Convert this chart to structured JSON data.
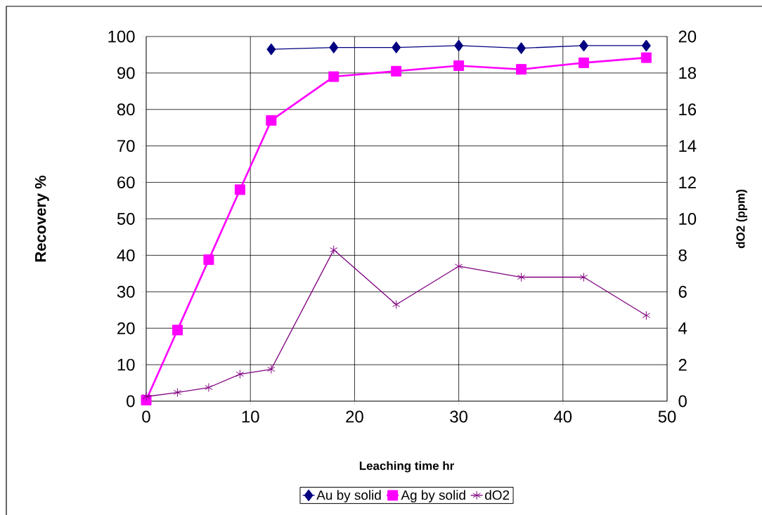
{
  "chart_data": {
    "type": "line",
    "xlabel": "Leaching time hr",
    "ylabel": "Recovery %",
    "y2label": "dO2 (ppm)",
    "xlim": [
      0,
      50
    ],
    "xticks": [
      0,
      10,
      20,
      30,
      40,
      50
    ],
    "ylim": [
      0,
      100
    ],
    "yticks": [
      0,
      10,
      20,
      30,
      40,
      50,
      60,
      70,
      80,
      90,
      100
    ],
    "y2lim": [
      0,
      20
    ],
    "y2ticks": [
      0,
      2,
      4,
      6,
      8,
      10,
      12,
      14,
      16,
      18,
      20
    ],
    "grid": true,
    "legend": "bottom",
    "line_style": "solid",
    "series": [
      {
        "name": "Au by solid",
        "color": "#000080",
        "marker": "diamond",
        "x": [
          12,
          18,
          24,
          30,
          36,
          42,
          48
        ],
        "values": [
          96.5,
          97,
          97,
          97.5,
          96.8,
          97.5,
          97.5
        ]
      },
      {
        "name": "Ag by solid",
        "color": "#ff00ff",
        "marker": "square",
        "x": [
          0,
          3,
          6,
          9,
          12,
          18,
          24,
          30,
          36,
          42,
          48
        ],
        "values": [
          0.3,
          19.5,
          38.8,
          58,
          77,
          89,
          90.5,
          92,
          91,
          92.8,
          94.2
        ]
      },
      {
        "name": "dO2",
        "color": "#800080",
        "marker": "cross",
        "axis": "y2",
        "x": [
          0,
          3,
          6,
          9,
          12,
          18,
          24,
          30,
          36,
          42,
          48
        ],
        "values": [
          0.25,
          0.48,
          0.75,
          1.48,
          1.75,
          8.3,
          5.3,
          7.4,
          6.8,
          6.8,
          4.7
        ]
      }
    ]
  }
}
